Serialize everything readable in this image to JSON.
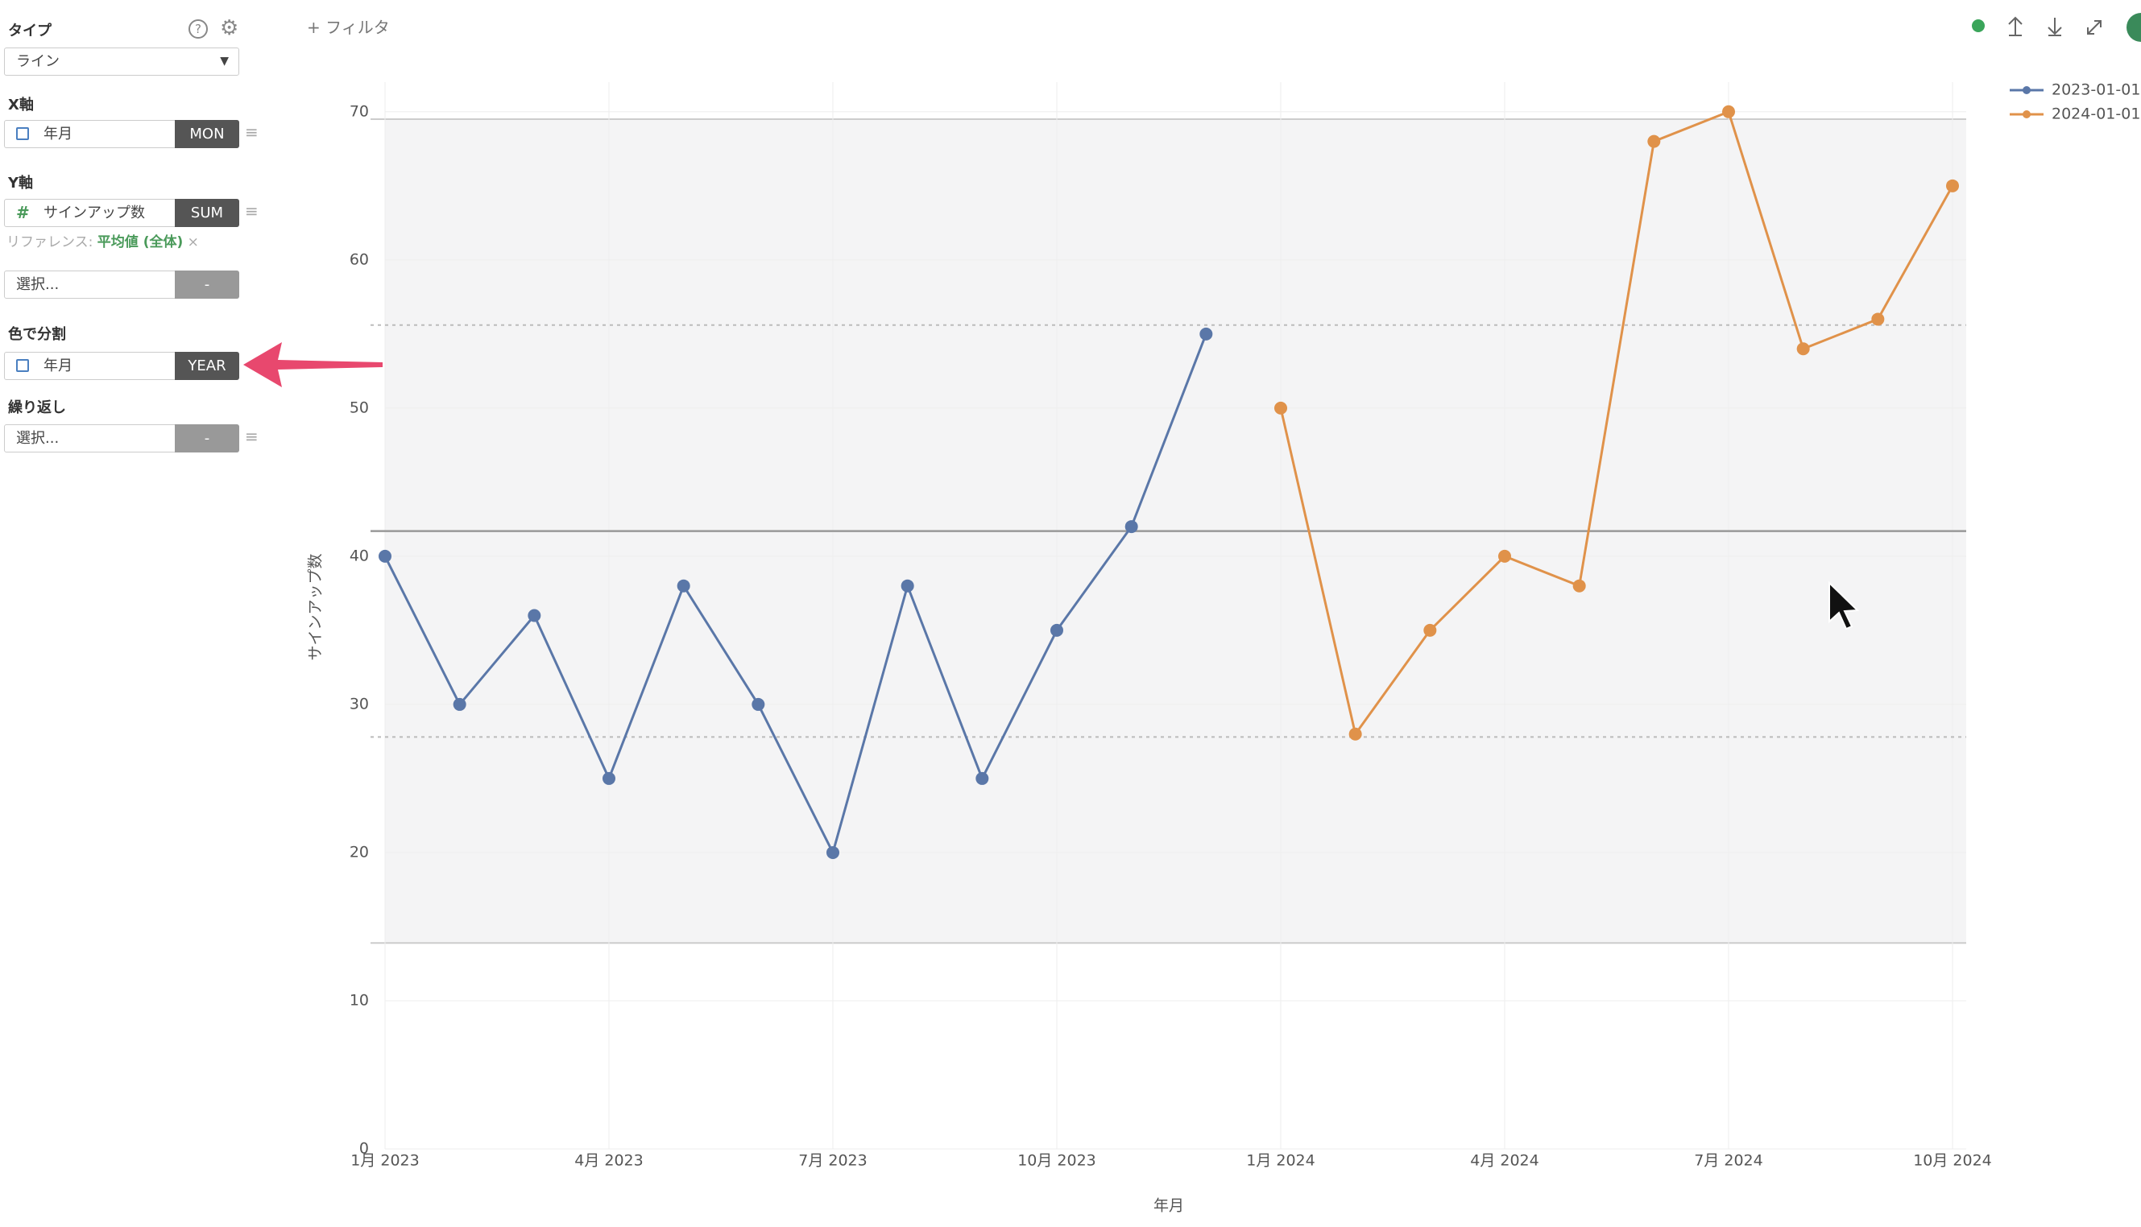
{
  "ui": {
    "type_label": "タイプ",
    "type_value": "ライン",
    "x_axis_label": "X軸",
    "x_field": "年月",
    "x_agg": "MON",
    "y_axis_label": "Y軸",
    "y_field_icon": "#",
    "y_field": "サインアップ数",
    "y_agg": "SUM",
    "reference_label": "リファレンス:",
    "reference_value": "平均値 (全体)",
    "reference_remove": "×",
    "select1": "選択...",
    "select1_btn": "-",
    "color_label": "色で分割",
    "color_field": "年月",
    "color_agg": "YEAR",
    "repeat_label": "繰り返し",
    "repeat_field": "選択...",
    "repeat_btn": "-",
    "filter": "+ フィルタ"
  },
  "chart_data": {
    "type": "line",
    "x_label": "年月",
    "y_label": "サインアップ数",
    "categories": [
      "1月 2023",
      null,
      null,
      "4月 2023",
      null,
      null,
      "7月 2023",
      null,
      null,
      "10月 2023",
      null,
      null,
      "1月 2024",
      null,
      null,
      "4月 2024",
      null,
      null,
      "7月 2024",
      null,
      null,
      "10月 2024"
    ],
    "series": [
      {
        "name": "2023-01-01",
        "color": "#5a77a8",
        "values": [
          40,
          30,
          36,
          25,
          38,
          30,
          20,
          38,
          25,
          35,
          42,
          55,
          null,
          null,
          null,
          null,
          null,
          null,
          null,
          null,
          null,
          null
        ]
      },
      {
        "name": "2024-01-01",
        "color": "#e0924a",
        "values": [
          null,
          null,
          null,
          null,
          null,
          null,
          null,
          null,
          null,
          null,
          null,
          null,
          50,
          28,
          35,
          40,
          38,
          68,
          70,
          54,
          56,
          65
        ]
      }
    ],
    "ylim": [
      0,
      72
    ],
    "yticks": [
      0,
      10,
      20,
      30,
      40,
      50,
      60,
      70
    ],
    "grid": true,
    "legend": "top-right",
    "reference_line": 41.7,
    "reference_dashed": [
      55.6,
      27.8
    ],
    "reference_band": [
      13.9,
      69.5
    ]
  }
}
